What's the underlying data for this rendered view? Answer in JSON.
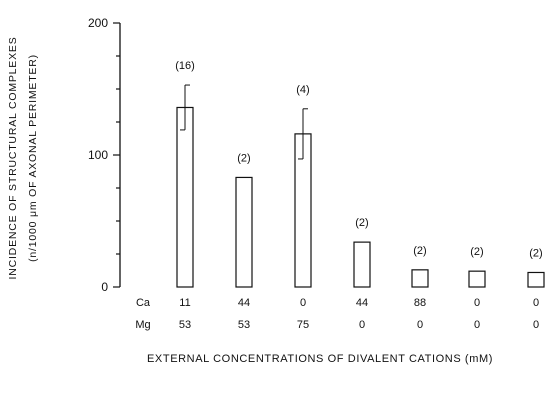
{
  "chart_data": {
    "type": "bar",
    "title": "",
    "ylabel_line1": "INCIDENCE OF STRUCTURAL COMPLEXES",
    "ylabel_line2": "(n/1000 μm OF AXONAL PERIMETER)",
    "xlabel": "EXTERNAL CONCENTRATIONS OF DIVALENT CATIONS (mM)",
    "ylim": [
      0,
      200
    ],
    "yticks": [
      0,
      100,
      200
    ],
    "row_labels": [
      "Ca",
      "Mg"
    ],
    "categories": [
      {
        "ca": "11",
        "mg": "53"
      },
      {
        "ca": "44",
        "mg": "53"
      },
      {
        "ca": "0",
        "mg": "75"
      },
      {
        "ca": "44",
        "mg": "0"
      },
      {
        "ca": "88",
        "mg": "0"
      },
      {
        "ca": "0",
        "mg": "0"
      },
      {
        "ca": "0",
        "mg": "0"
      }
    ],
    "values": [
      136,
      83,
      116,
      34,
      13,
      12,
      11
    ],
    "errors": [
      17,
      null,
      19,
      null,
      null,
      null,
      null
    ],
    "n_labels": [
      "(16)",
      "(2)",
      "(4)",
      "(2)",
      "(2)",
      "(2)",
      "(2)"
    ],
    "grid": false,
    "bar_fill": "#ffffff",
    "bar_stroke": "#111111"
  }
}
